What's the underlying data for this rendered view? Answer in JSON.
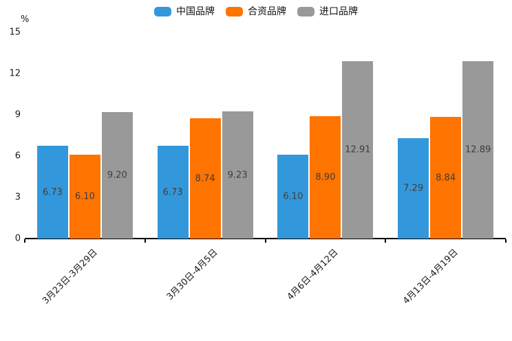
{
  "chart_data": {
    "type": "bar",
    "title": "",
    "unit_label": "%",
    "categories": [
      "3月23日-3月29日",
      "3月30日-4月5日",
      "4月6日-4月12日",
      "4月13日-4月19日"
    ],
    "series": [
      {
        "name": "中国品牌",
        "color": "#3398DB",
        "values": [
          6.73,
          6.73,
          6.1,
          7.29
        ],
        "labels": [
          "6.73",
          "6.73",
          "6.10",
          "7.29"
        ]
      },
      {
        "name": "合资品牌",
        "color": "#FF7300",
        "values": [
          6.1,
          8.74,
          8.9,
          8.84
        ],
        "labels": [
          "6.10",
          "8.74",
          "8.90",
          "8.84"
        ]
      },
      {
        "name": "进口品牌",
        "color": "#999999",
        "values": [
          9.2,
          9.23,
          12.91,
          12.89
        ],
        "labels": [
          "9.20",
          "9.23",
          "12.91",
          "12.89"
        ]
      }
    ],
    "y_ticks": [
      0,
      3,
      6,
      9,
      12,
      15
    ],
    "ylim": [
      0,
      15
    ],
    "grid": false,
    "legend_position": "top",
    "value_label_position": "inside-center",
    "x_label_rotation_deg": 45
  },
  "colors": {
    "background": "#ffffff",
    "axis": "#000000",
    "tick_text": "#1a1a1a",
    "value_label_text": "#3d3d3d"
  }
}
